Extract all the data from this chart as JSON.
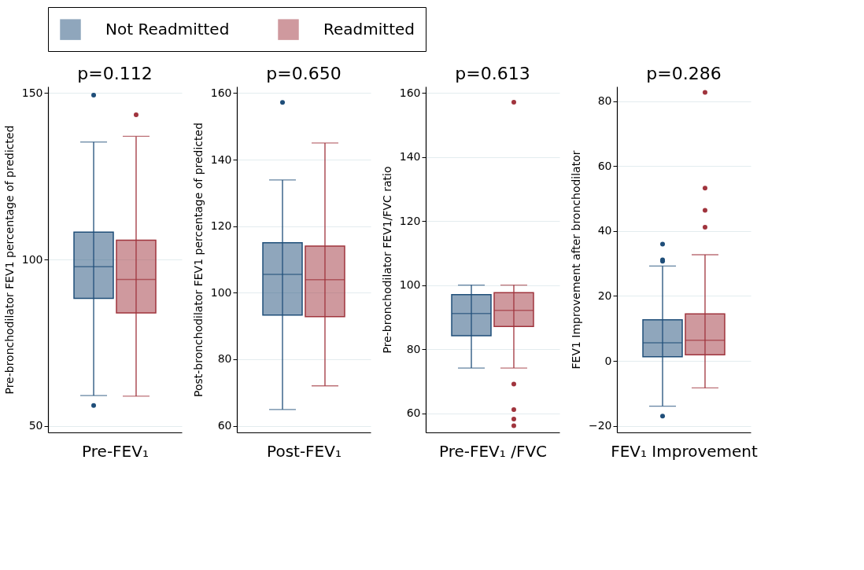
{
  "chart_data": [
    {
      "type": "box",
      "title": "p=0.112",
      "xlabel": "Pre-FEV₁",
      "ylabel": "Pre-bronchodilator FEV1 percentage of predicted",
      "categories": [
        null
      ],
      "ylim": [
        48,
        152
      ],
      "yticks": [
        50,
        100,
        150
      ],
      "grid": "y",
      "tick_labels": "y",
      "legend": "top right",
      "series": [
        {
          "name": "Not Readmitted",
          "color": "#1f4e79",
          "boxes": [
            {
              "low": 59.1,
              "q1": 88.3,
              "median": 97.8,
              "q3": 108.2,
              "high": 135.3,
              "outliers": [
                149.4,
                56.1
              ]
            }
          ]
        },
        {
          "name": "Readmitted",
          "color": "#a0343d",
          "boxes": [
            {
              "low": 58.9,
              "q1": 83.9,
              "median": 94.0,
              "q3": 105.8,
              "high": 137.0,
              "outliers": [
                143.5
              ]
            }
          ]
        }
      ]
    },
    {
      "type": "box",
      "title": "p=0.650",
      "xlabel": "Post-FEV₁",
      "ylabel": "Post-bronchodilator FEV1 percentage of predicted",
      "categories": [
        null
      ],
      "ylim": [
        58,
        162
      ],
      "yticks": [
        60,
        80,
        100,
        120,
        140,
        160
      ],
      "grid": "y",
      "tick_labels": "y",
      "series": [
        {
          "color": "#1f4e79",
          "boxes": [
            {
              "low": 64.9,
              "q1": 93.3,
              "median": 105.5,
              "q3": 115.0,
              "high": 133.9,
              "outliers": [
                157.2
              ]
            }
          ]
        },
        {
          "color": "#a0343d",
          "boxes": [
            {
              "low": 72.0,
              "q1": 92.8,
              "median": 103.9,
              "q3": 114.0,
              "high": 145.0
            }
          ]
        }
      ]
    },
    {
      "type": "box",
      "title": "p=0.613",
      "xlabel": "Pre-FEV₁ /FVC",
      "ylabel": "Pre-bronchodilator FEV1/FVC ratio",
      "categories": [
        null
      ],
      "ylim": [
        54,
        162
      ],
      "yticks": [
        60,
        80,
        100,
        120,
        140,
        160
      ],
      "grid": "y",
      "tick_labels": "y",
      "series": [
        {
          "color": "#1f4e79",
          "boxes": [
            {
              "low": 74.1,
              "q1": 84.2,
              "median": 91.1,
              "q3": 97.0,
              "high": 100.0
            }
          ]
        },
        {
          "color": "#a0343d",
          "boxes": [
            {
              "low": 74.1,
              "q1": 87.1,
              "median": 92.1,
              "q3": 97.6,
              "high": 100.0,
              "outliers": [
                157.1,
                69.1,
                61.1,
                58.2,
                56.1
              ]
            }
          ]
        }
      ]
    },
    {
      "type": "box",
      "title": "p=0.286",
      "xlabel": "FEV₁ Improvement",
      "ylabel": "FEV1 Improvement after bronchodilator",
      "categories": [
        null
      ],
      "ylim": [
        -22,
        84.5
      ],
      "yticks": [
        -20,
        0,
        20,
        40,
        60,
        80
      ],
      "grid": "y",
      "tick_labels": "y",
      "series": [
        {
          "color": "#1f4e79",
          "boxes": [
            {
              "low": -13.9,
              "q1": 1.3,
              "median": 5.6,
              "q3": 12.7,
              "high": 29.2,
              "outliers": [
                36.0,
                31.1,
                30.7,
                -17.0
              ]
            }
          ]
        },
        {
          "color": "#a0343d",
          "boxes": [
            {
              "low": -8.3,
              "q1": 1.9,
              "median": 6.4,
              "q3": 14.5,
              "high": 32.7,
              "outliers": [
                82.7,
                53.2,
                46.4,
                41.2
              ]
            }
          ]
        }
      ]
    }
  ]
}
